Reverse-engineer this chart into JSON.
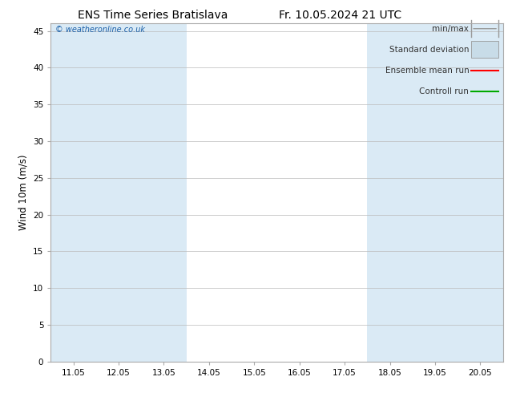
{
  "title": "ENS Time Series Bratislava",
  "title_right": "Fr. 10.05.2024 21 UTC",
  "ylabel": "Wind 10m (m/s)",
  "watermark": "© weatheronline.co.uk",
  "ylim": [
    0,
    46
  ],
  "yticks": [
    0,
    5,
    10,
    15,
    20,
    25,
    30,
    35,
    40,
    45
  ],
  "x_labels": [
    "11.05",
    "12.05",
    "13.05",
    "14.05",
    "15.05",
    "16.05",
    "17.05",
    "18.05",
    "19.05",
    "20.05"
  ],
  "x_positions": [
    0,
    1,
    2,
    3,
    4,
    5,
    6,
    7,
    8,
    9
  ],
  "shaded_columns": [
    0,
    1,
    2,
    7,
    8,
    9
  ],
  "shade_color": "#daeaf5",
  "background_color": "#ffffff",
  "grid_color": "#bbbbbb",
  "legend_items": [
    "min/max",
    "Standard deviation",
    "Ensemble mean run",
    "Controll run"
  ],
  "legend_symbol_colors": [
    "#999999",
    "#c8dce8",
    "#ff0000",
    "#00aa00"
  ],
  "title_fontsize": 10,
  "tick_fontsize": 7.5,
  "ylabel_fontsize": 8.5,
  "watermark_color": "#1a5fa8",
  "watermark_fontsize": 7,
  "legend_fontsize": 7.5,
  "spine_color": "#aaaaaa"
}
